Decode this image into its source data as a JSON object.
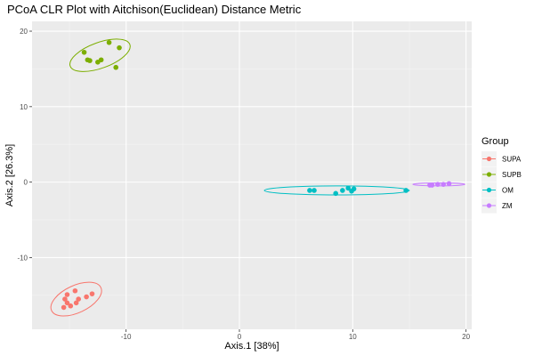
{
  "chart_data": {
    "type": "scatter",
    "title": "PCoA CLR Plot with Aitchison(Euclidean) Distance Metric",
    "xlabel": "Axis.1   [38%]",
    "ylabel": "Axis.2   [26.3%]",
    "xlim": [
      -18.3,
      20.5
    ],
    "ylim": [
      -19.5,
      21.3
    ],
    "x_ticks": [
      -10,
      0,
      10,
      20
    ],
    "x_tick_labels": [
      "-10",
      "0",
      "10",
      "20"
    ],
    "y_ticks": [
      -10,
      0,
      10,
      20
    ],
    "y_tick_labels": [
      "-10",
      "0",
      "10",
      "20"
    ],
    "grid": true,
    "background": "#EBEBEB",
    "legend": {
      "title": "Group",
      "position": "right"
    },
    "series": [
      {
        "name": "SUPA",
        "color": "#F8766D",
        "points": [
          [
            -14.9,
            -16.4
          ],
          [
            -15.2,
            -16.0
          ],
          [
            -15.4,
            -15.5
          ],
          [
            -15.2,
            -14.9
          ],
          [
            -14.5,
            -14.4
          ],
          [
            -13.5,
            -15.2
          ],
          [
            -14.2,
            -15.5
          ],
          [
            -13.0,
            -14.8
          ],
          [
            -14.4,
            -16.0
          ],
          [
            -15.5,
            -16.6
          ]
        ],
        "ellipse": {
          "cx": -14.4,
          "cy": -15.5,
          "rx": 2.4,
          "ry": 1.8,
          "angle": 25
        }
      },
      {
        "name": "SUPB",
        "color": "#7CAE00",
        "points": [
          [
            -13.7,
            17.2
          ],
          [
            -11.5,
            18.5
          ],
          [
            -10.6,
            17.8
          ],
          [
            -12.2,
            16.2
          ],
          [
            -12.5,
            15.9
          ],
          [
            -13.2,
            16.1
          ],
          [
            -13.4,
            16.2
          ],
          [
            -10.9,
            15.2
          ]
        ],
        "ellipse": {
          "cx": -12.3,
          "cy": 16.8,
          "rx": 2.8,
          "ry": 1.7,
          "angle": 20
        }
      },
      {
        "name": "OM",
        "color": "#00BFC4",
        "points": [
          [
            6.2,
            -1.1
          ],
          [
            6.6,
            -1.1
          ],
          [
            8.5,
            -1.5
          ],
          [
            9.1,
            -1.1
          ],
          [
            9.6,
            -0.8
          ],
          [
            9.9,
            -1.2
          ],
          [
            10.1,
            -0.9
          ],
          [
            14.7,
            -1.1
          ]
        ],
        "ellipse": {
          "cx": 8.6,
          "cy": -1.1,
          "rx": 6.4,
          "ry": 0.6,
          "angle": 0
        }
      },
      {
        "name": "ZM",
        "color": "#C77CFF",
        "points": [
          [
            16.8,
            -0.4
          ],
          [
            17.0,
            -0.4
          ],
          [
            17.5,
            -0.3
          ],
          [
            18.0,
            -0.3
          ],
          [
            18.5,
            -0.2
          ]
        ],
        "ellipse": {
          "cx": 17.6,
          "cy": -0.3,
          "rx": 2.3,
          "ry": 0.2,
          "angle": 0
        }
      }
    ]
  }
}
